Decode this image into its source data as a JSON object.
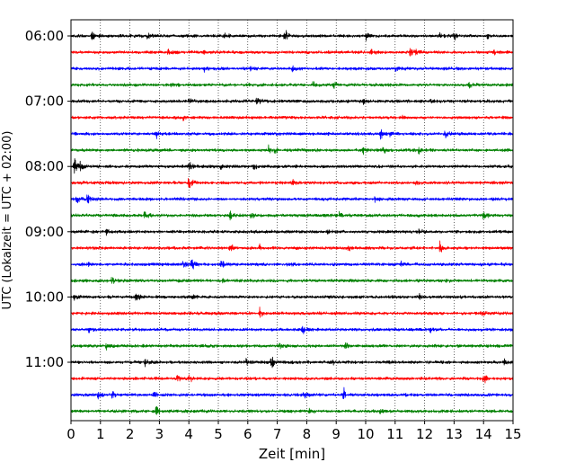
{
  "chart_data": {
    "type": "line",
    "title": "",
    "xlabel": "Zeit  [min]",
    "ylabel": "UTC (Lokalzeit = UTC + 02:00)",
    "xlim": [
      0,
      15
    ],
    "x_ticks": [
      "0",
      "1",
      "2",
      "3",
      "4",
      "5",
      "6",
      "7",
      "8",
      "9",
      "10",
      "11",
      "12",
      "13",
      "14",
      "15"
    ],
    "y_tick_labels": [
      {
        "label": "06:00",
        "trace": 0
      },
      {
        "label": "07:00",
        "trace": 4
      },
      {
        "label": "08:00",
        "trace": 8
      },
      {
        "label": "09:00",
        "trace": 12
      },
      {
        "label": "10:00",
        "trace": 16
      },
      {
        "label": "11:00",
        "trace": 20
      }
    ],
    "vertical_grid": "dotted",
    "series_colors": [
      "#000000",
      "#ff0000",
      "#0000ff",
      "#008000"
    ],
    "traces": [
      {
        "color": "#000000",
        "noise": 0.15,
        "events": [
          [
            0.7,
            0.45
          ],
          [
            2.6,
            0.35
          ],
          [
            5.2,
            0.4
          ],
          [
            7.25,
            0.9
          ],
          [
            10.0,
            0.4
          ],
          [
            12.5,
            0.3
          ],
          [
            13.0,
            0.35
          ],
          [
            14.1,
            0.35
          ]
        ]
      },
      {
        "color": "#ff0000",
        "noise": 0.15,
        "events": [
          [
            3.3,
            0.35
          ],
          [
            4.5,
            0.3
          ],
          [
            10.2,
            0.4
          ],
          [
            11.5,
            0.5
          ],
          [
            11.7,
            0.3
          ],
          [
            14.3,
            0.35
          ]
        ]
      },
      {
        "color": "#0000ff",
        "noise": 0.15,
        "events": [
          [
            4.5,
            0.3
          ],
          [
            6.1,
            0.55
          ],
          [
            7.5,
            0.25
          ],
          [
            11.0,
            0.3
          ]
        ]
      },
      {
        "color": "#008000",
        "noise": 0.15,
        "events": [
          [
            3.4,
            0.3
          ],
          [
            8.2,
            0.35
          ],
          [
            8.9,
            0.3
          ],
          [
            13.5,
            0.3
          ]
        ]
      },
      {
        "color": "#000000",
        "noise": 0.15,
        "events": [
          [
            4.0,
            0.25
          ],
          [
            6.3,
            0.55
          ],
          [
            9.9,
            0.3
          ],
          [
            12.2,
            0.35
          ]
        ]
      },
      {
        "color": "#ff0000",
        "noise": 0.15,
        "events": [
          [
            3.8,
            0.3
          ],
          [
            11.2,
            0.25
          ]
        ]
      },
      {
        "color": "#0000ff",
        "noise": 0.15,
        "events": [
          [
            2.9,
            0.35
          ],
          [
            10.5,
            0.55
          ],
          [
            10.8,
            0.3
          ],
          [
            12.7,
            0.45
          ]
        ]
      },
      {
        "color": "#008000",
        "noise": 0.15,
        "events": [
          [
            6.7,
            0.45
          ],
          [
            6.9,
            0.3
          ],
          [
            9.9,
            0.35
          ],
          [
            10.6,
            0.3
          ],
          [
            11.8,
            0.35
          ]
        ]
      },
      {
        "color": "#000000",
        "noise": 0.15,
        "events": [
          [
            0.1,
            1.1
          ],
          [
            0.3,
            0.45
          ],
          [
            4.0,
            0.55
          ],
          [
            5.1,
            0.3
          ],
          [
            6.2,
            0.35
          ]
        ]
      },
      {
        "color": "#ff0000",
        "noise": 0.15,
        "events": [
          [
            4.0,
            0.65
          ],
          [
            7.5,
            0.35
          ],
          [
            11.7,
            0.3
          ]
        ]
      },
      {
        "color": "#0000ff",
        "noise": 0.15,
        "events": [
          [
            0.2,
            0.55
          ],
          [
            0.55,
            0.45
          ],
          [
            10.3,
            0.25
          ]
        ]
      },
      {
        "color": "#008000",
        "noise": 0.15,
        "events": [
          [
            2.5,
            0.5
          ],
          [
            5.4,
            0.45
          ],
          [
            6.1,
            0.35
          ],
          [
            9.1,
            0.3
          ],
          [
            14.0,
            0.45
          ]
        ]
      },
      {
        "color": "#000000",
        "noise": 0.15,
        "events": [
          [
            1.2,
            0.3
          ],
          [
            8.7,
            0.3
          ],
          [
            11.8,
            0.3
          ]
        ]
      },
      {
        "color": "#ff0000",
        "noise": 0.15,
        "events": [
          [
            3.3,
            0.3
          ],
          [
            5.4,
            0.5
          ],
          [
            6.4,
            0.3
          ],
          [
            9.4,
            0.35
          ],
          [
            12.5,
            0.75
          ]
        ]
      },
      {
        "color": "#0000ff",
        "noise": 0.15,
        "events": [
          [
            0.6,
            0.3
          ],
          [
            3.8,
            0.4
          ],
          [
            4.1,
            0.55
          ],
          [
            5.1,
            0.5
          ],
          [
            7.3,
            0.3
          ],
          [
            11.2,
            0.3
          ]
        ]
      },
      {
        "color": "#008000",
        "noise": 0.15,
        "events": [
          [
            1.4,
            0.35
          ],
          [
            5.1,
            0.3
          ],
          [
            12.7,
            0.3
          ]
        ]
      },
      {
        "color": "#000000",
        "noise": 0.15,
        "events": [
          [
            0.1,
            0.5
          ],
          [
            2.2,
            0.6
          ],
          [
            4.1,
            0.4
          ],
          [
            11.8,
            0.35
          ]
        ]
      },
      {
        "color": "#ff0000",
        "noise": 0.15,
        "events": [
          [
            6.4,
            0.5
          ],
          [
            13.9,
            0.35
          ]
        ]
      },
      {
        "color": "#0000ff",
        "noise": 0.15,
        "events": [
          [
            0.6,
            0.3
          ],
          [
            7.85,
            0.6
          ],
          [
            12.2,
            0.35
          ]
        ]
      },
      {
        "color": "#008000",
        "noise": 0.15,
        "events": [
          [
            1.2,
            0.3
          ],
          [
            7.1,
            0.35
          ],
          [
            9.3,
            0.4
          ]
        ]
      },
      {
        "color": "#000000",
        "noise": 0.15,
        "events": [
          [
            2.5,
            0.5
          ],
          [
            5.9,
            0.55
          ],
          [
            6.8,
            0.8
          ],
          [
            8.8,
            0.4
          ],
          [
            14.7,
            0.35
          ]
        ]
      },
      {
        "color": "#ff0000",
        "noise": 0.15,
        "events": [
          [
            4.0,
            0.5
          ],
          [
            3.6,
            0.3
          ],
          [
            14.0,
            0.55
          ]
        ]
      },
      {
        "color": "#0000ff",
        "noise": 0.15,
        "events": [
          [
            0.9,
            0.4
          ],
          [
            1.4,
            0.35
          ],
          [
            2.8,
            0.45
          ],
          [
            9.25,
            0.6
          ],
          [
            7.9,
            0.3
          ]
        ]
      },
      {
        "color": "#008000",
        "noise": 0.15,
        "events": [
          [
            2.9,
            0.5
          ],
          [
            8.1,
            0.3
          ],
          [
            10.5,
            0.35
          ]
        ]
      }
    ]
  }
}
